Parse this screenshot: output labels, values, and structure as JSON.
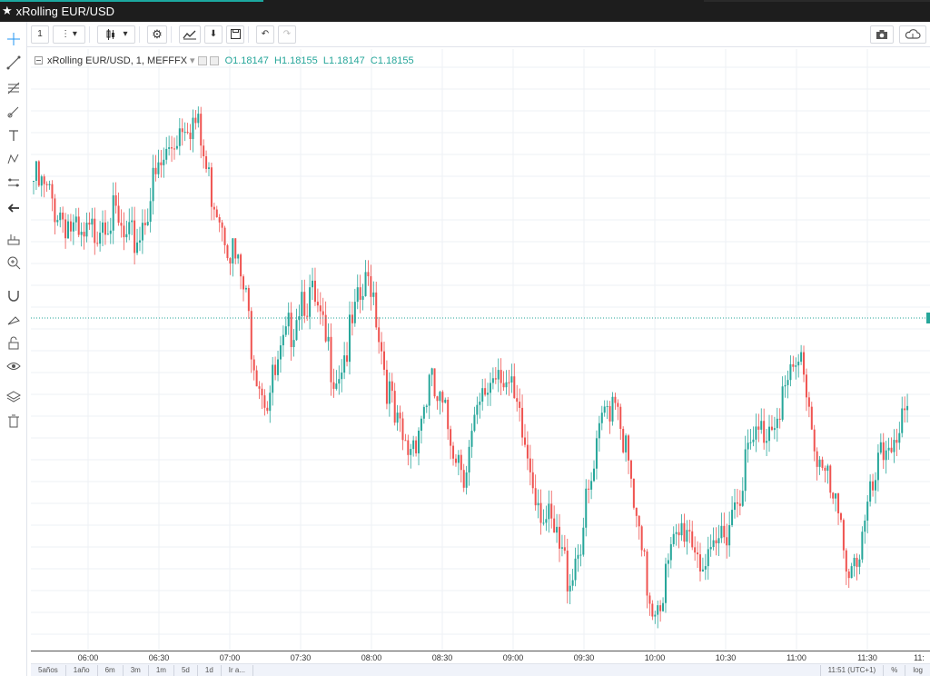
{
  "window": {
    "title": "xRolling EUR/USD"
  },
  "toolbar": {
    "interval": "1",
    "icons": [
      "menu-dots-icon",
      "dropdown-icon",
      "candles-icon",
      "dropdown-icon",
      "gear-icon",
      "compare-icon",
      "save-icon",
      "undo-icon",
      "redo-icon",
      "camera-icon",
      "cloud-icon"
    ]
  },
  "legend": {
    "symbol": "xRolling EUR/USD, 1, MEFFFX",
    "o_label": "O",
    "o_value": "1.18147",
    "h_label": "H",
    "h_value": "1.18155",
    "l_label": "L",
    "l_value": "1.18147",
    "c_label": "C",
    "c_value": "1.18155"
  },
  "colors": {
    "up": "#26a69a",
    "down": "#ef5350",
    "grid": "#eef0f4",
    "priceLine": "#26a69a"
  },
  "time_axis": [
    "06:00",
    "06:30",
    "07:00",
    "07:30",
    "08:00",
    "08:30",
    "09:00",
    "09:30",
    "10:00",
    "10:30",
    "11:00",
    "11:30",
    "11:"
  ],
  "range_bar": {
    "buttons": [
      "5años",
      "1año",
      "6m",
      "3m",
      "1m",
      "5d",
      "1d",
      "Ir a..."
    ],
    "clock": "11:51 (UTC+1)",
    "pct": "%",
    "log": "log"
  },
  "chart_data": {
    "type": "candlestick",
    "close_series": [
      1.1831,
      1.183,
      1.1829,
      1.1828,
      1.1826,
      1.1827,
      1.1829,
      1.1828,
      1.1826,
      1.1827,
      1.183,
      1.1832,
      1.1834,
      1.1836,
      1.1835,
      1.1831,
      1.1829,
      1.1826,
      1.1823,
      1.1818,
      1.1815,
      1.1817,
      1.182,
      1.1823,
      1.1822,
      1.1819,
      1.1817,
      1.1819,
      1.1822,
      1.1824,
      1.1818,
      1.1813,
      1.1811,
      1.1813,
      1.1816,
      1.1814,
      1.1812,
      1.181,
      1.1813,
      1.1816,
      1.1818,
      1.1815,
      1.1812,
      1.1809,
      1.1806,
      1.1804,
      1.1802,
      1.1805,
      1.1809,
      1.1814,
      1.1816,
      1.181,
      1.1804,
      1.18,
      1.1801,
      1.1804,
      1.1806,
      1.1804,
      1.1802,
      1.1805,
      1.1807,
      1.181,
      1.1812,
      1.1813,
      1.1815,
      1.1816,
      1.1818,
      1.1812,
      1.1809,
      1.1806,
      1.1803,
      1.1804,
      1.1808,
      1.1811,
      1.1813,
      1.1813
    ]
  }
}
